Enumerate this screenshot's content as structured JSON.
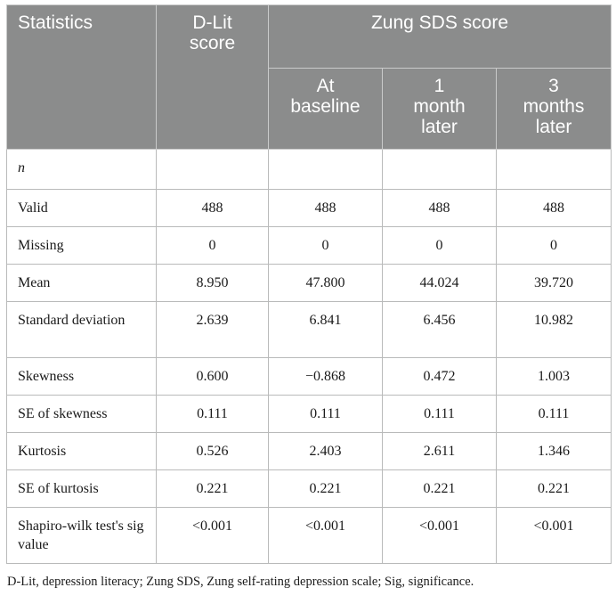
{
  "header": {
    "statistics": "Statistics",
    "dlit": "D-Lit\nscore",
    "zung": "Zung SDS score",
    "baseline": "At\nbaseline",
    "month1": "1\nmonth\nlater",
    "month3": "3\nmonths\nlater"
  },
  "rows": [
    {
      "label": "n",
      "values": [
        "",
        "",
        "",
        ""
      ]
    },
    {
      "label": "Valid",
      "values": [
        "488",
        "488",
        "488",
        "488"
      ]
    },
    {
      "label": "Missing",
      "values": [
        "0",
        "0",
        "0",
        "0"
      ]
    },
    {
      "label": "Mean",
      "values": [
        "8.950",
        "47.800",
        "44.024",
        "39.720"
      ]
    },
    {
      "label": "Standard deviation",
      "values": [
        "2.639",
        "6.841",
        "6.456",
        "10.982"
      ]
    },
    {
      "label": "Skewness",
      "values": [
        "0.600",
        "−0.868",
        "0.472",
        "1.003"
      ]
    },
    {
      "label": "SE of skewness",
      "values": [
        "0.111",
        "0.111",
        "0.111",
        "0.111"
      ]
    },
    {
      "label": "Kurtosis",
      "values": [
        "0.526",
        "2.403",
        "2.611",
        "1.346"
      ]
    },
    {
      "label": "SE of kurtosis",
      "values": [
        "0.221",
        "0.221",
        "0.221",
        "0.221"
      ]
    },
    {
      "label": "Shapiro-wilk test's sig value",
      "values": [
        "<0.001",
        "<0.001",
        "<0.001",
        "<0.001"
      ]
    }
  ],
  "footnote": "D-Lit, depression literacy; Zung SDS, Zung self-rating depression scale; Sig, significance."
}
